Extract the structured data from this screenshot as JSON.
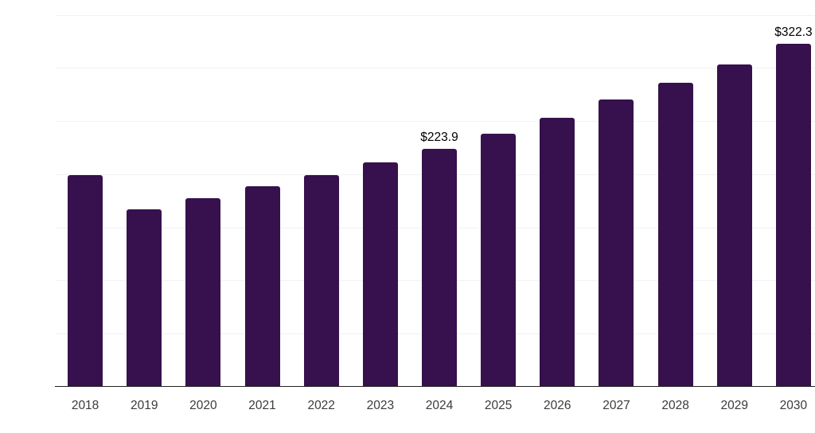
{
  "chart_data": {
    "type": "bar",
    "title": "",
    "xlabel": "",
    "ylabel": "",
    "categories": [
      "2018",
      "2019",
      "2020",
      "2021",
      "2022",
      "2023",
      "2024",
      "2025",
      "2026",
      "2027",
      "2028",
      "2029",
      "2030"
    ],
    "values": [
      199.0,
      166.8,
      177.2,
      188.5,
      199.0,
      211.4,
      223.9,
      237.8,
      253.0,
      269.9,
      285.7,
      302.9,
      322.3
    ],
    "data_labels": [
      {
        "category": "2024",
        "text": "$223.9"
      },
      {
        "category": "2030",
        "text": "$322.3"
      }
    ],
    "ylim": [
      0,
      350
    ],
    "gridline_step": 50,
    "grid": "horizontal-only",
    "legend": "none",
    "y_axis_labels_visible": false,
    "x_axis_labels_visible": true
  },
  "colors": {
    "bar": "#36114d",
    "gridline": "#f2f1f3",
    "axis_line": "#222222",
    "tick_label": "#3b3b3b",
    "data_label": "#000000",
    "background": "#ffffff"
  }
}
